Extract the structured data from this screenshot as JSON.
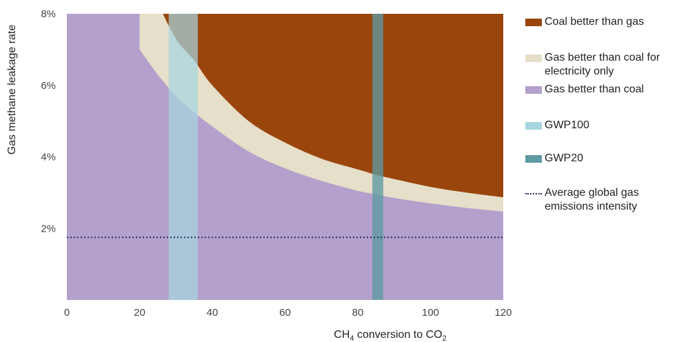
{
  "chart_data": {
    "type": "area",
    "xlabel_main": "CH",
    "xlabel_sub1": "4",
    "xlabel_mid": " conversion to CO",
    "xlabel_sub2": "2",
    "ylabel": "Gas methane leakage rate",
    "xlim": [
      0,
      120
    ],
    "ylim": [
      0,
      8
    ],
    "x_ticks": [
      0,
      20,
      40,
      60,
      80,
      100,
      120
    ],
    "x_tick_labels": [
      "0",
      "20",
      "40",
      "60",
      "80",
      "100",
      "120"
    ],
    "y_ticks": [
      2,
      4,
      6,
      8
    ],
    "y_tick_labels": [
      "2%",
      "4%",
      "6%",
      "8%"
    ],
    "grid": false,
    "legend_position": "right",
    "colors": {
      "coal_better": "#9a450c",
      "gas_better_electricity": "#e6dfc9",
      "gas_better": "#b3a0cc",
      "gwp100": "#a6d6df",
      "gwp20": "#5d9aa2",
      "average_line": "#2a2a5e"
    },
    "series": [
      {
        "name": "Coal better than gas",
        "x": [
          20,
          25,
          30,
          35,
          40,
          50,
          60,
          70,
          80,
          85,
          90,
          100,
          110,
          120
        ],
        "y": [
          9.4,
          8.3,
          7.3,
          6.7,
          6.0,
          5.0,
          4.4,
          3.95,
          3.65,
          3.5,
          3.38,
          3.16,
          3.0,
          2.87
        ],
        "note_region": "above upper boundary"
      },
      {
        "name": "Gas better than coal for electricity only",
        "x": [
          20,
          25,
          30,
          35,
          40,
          50,
          60,
          70,
          80,
          85,
          90,
          100,
          110,
          120
        ],
        "y": [
          7.0,
          6.3,
          5.7,
          5.25,
          4.85,
          4.15,
          3.68,
          3.33,
          3.05,
          2.95,
          2.85,
          2.7,
          2.57,
          2.47
        ],
        "note_region": "between lower and upper boundary"
      },
      {
        "name": "Gas better than coal",
        "note_region": "below lower boundary"
      }
    ],
    "bands": [
      {
        "name": "GWP100",
        "x_range": [
          28,
          36
        ]
      },
      {
        "name": "GWP20",
        "x_range": [
          84,
          87
        ]
      }
    ],
    "reference_lines": [
      {
        "name": "Average global gas emissions intensity",
        "y": 1.75,
        "style": "dotted"
      }
    ]
  },
  "legend": {
    "items": [
      {
        "label_lines": [
          "Coal better than gas"
        ],
        "swatch": "coal_better",
        "kind": "box"
      },
      {
        "label_lines": [
          "Gas better than coal for",
          "electricity only"
        ],
        "swatch": "gas_better_electricity",
        "kind": "box"
      },
      {
        "label_lines": [
          "Gas better than coal"
        ],
        "swatch": "gas_better",
        "kind": "box"
      },
      {
        "label_lines": [
          "GWP100"
        ],
        "swatch": "gwp100",
        "kind": "box"
      },
      {
        "label_lines": [
          "GWP20"
        ],
        "swatch": "gwp20",
        "kind": "box"
      },
      {
        "label_lines": [
          "Average global gas",
          "emissions intensity"
        ],
        "swatch": "average_line",
        "kind": "dotted"
      }
    ]
  }
}
